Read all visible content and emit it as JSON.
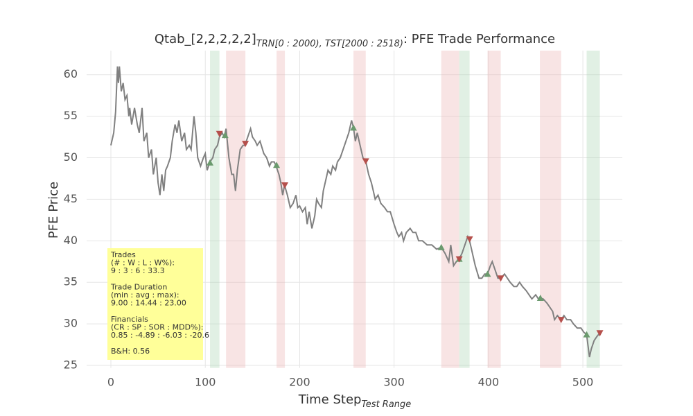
{
  "chart_data": {
    "type": "line",
    "title": "Qtab_[2,2,2,2,2]",
    "title_subscript": "TRN[0 : 2000), TST[2000 : 2518)",
    "title_suffix": ": PFE Trade Performance",
    "xlabel": "Time Step",
    "xlabel_subscript": "Test Range",
    "ylabel": "PFE Price",
    "xlim": [
      -25.7,
      541.8
    ],
    "ylim": [
      24.7,
      62.9
    ],
    "xticks": [
      0,
      100,
      200,
      300,
      400,
      500
    ],
    "yticks": [
      25,
      30,
      35,
      40,
      45,
      50,
      55,
      60
    ],
    "grid": true,
    "line": {
      "color": "#808080",
      "x": [
        0,
        3,
        5,
        7,
        8,
        9,
        11,
        13,
        15,
        17,
        19,
        20,
        22,
        25,
        28,
        30,
        33,
        35,
        38,
        40,
        43,
        45,
        48,
        50,
        52,
        54,
        56,
        58,
        60,
        63,
        65,
        68,
        70,
        72,
        75,
        78,
        80,
        83,
        85,
        88,
        90,
        92,
        95,
        98,
        100,
        102,
        105,
        108,
        110,
        113,
        115,
        118,
        120,
        122,
        125,
        128,
        130,
        132,
        134,
        137,
        140,
        142,
        145,
        148,
        150,
        153,
        155,
        158,
        162,
        165,
        168,
        170,
        173,
        175,
        178,
        180,
        182,
        184,
        187,
        190,
        193,
        196,
        198,
        200,
        203,
        206,
        208,
        210,
        213,
        216,
        218,
        220,
        223,
        225,
        228,
        230,
        233,
        235,
        238,
        240,
        243,
        246,
        249,
        252,
        255,
        257,
        259,
        261,
        264,
        267,
        270,
        273,
        276,
        278,
        280,
        283,
        286,
        290,
        293,
        296,
        300,
        303,
        305,
        308,
        310,
        313,
        317,
        320,
        323,
        326,
        330,
        335,
        340,
        345,
        350,
        354,
        358,
        360,
        363,
        366,
        369,
        372,
        375,
        378,
        380,
        383,
        386,
        390,
        393,
        396,
        399,
        402,
        404,
        407,
        410,
        413,
        417,
        420,
        423,
        427,
        430,
        433,
        436,
        440,
        443,
        446,
        450,
        453,
        455,
        458,
        462,
        465,
        468,
        470,
        473,
        477,
        480,
        483,
        487,
        490,
        494,
        498,
        501,
        504,
        507,
        509,
        512,
        515,
        518
      ],
      "y": [
        51.5,
        53,
        55.5,
        61,
        59,
        61,
        58,
        59,
        57,
        57.5,
        55,
        56,
        54,
        56,
        54,
        53,
        56,
        52,
        53,
        50,
        51,
        48,
        50,
        47,
        45.5,
        48,
        46,
        48.5,
        49,
        50,
        52,
        54,
        53,
        54.5,
        52,
        53,
        51,
        51.5,
        51,
        55,
        53,
        50,
        49,
        50,
        50.5,
        48.5,
        49.5,
        50,
        51,
        51.5,
        52.5,
        53,
        52.5,
        53.5,
        50,
        48,
        48,
        46,
        48.5,
        51,
        51.5,
        51.5,
        52.5,
        53.5,
        52.5,
        52,
        51.5,
        52,
        50.5,
        50,
        49,
        49.5,
        49.5,
        49,
        48,
        47,
        45.5,
        46.7,
        45.5,
        44,
        44.5,
        45.5,
        44,
        44.2,
        43.5,
        44,
        42,
        43.5,
        41.5,
        43,
        45,
        44.5,
        44,
        46,
        47.5,
        48.5,
        48,
        49,
        48.5,
        49.5,
        50,
        51,
        52,
        53,
        54.5,
        53.6,
        52,
        53,
        51.5,
        50,
        49.6,
        48,
        47,
        46,
        45,
        45.5,
        44.5,
        44,
        43.5,
        43.5,
        42,
        41,
        40.5,
        41,
        40,
        41,
        41.5,
        41,
        41,
        40,
        40,
        39.5,
        39.5,
        39,
        39.2,
        38.5,
        37.5,
        39.5,
        37,
        37.5,
        37.8,
        38.5,
        39.5,
        40.5,
        40,
        38.5,
        37,
        35.5,
        35.5,
        36,
        36,
        37,
        37.5,
        36.5,
        35.5,
        35.5,
        36,
        35.5,
        35,
        34.5,
        34.5,
        35,
        34.5,
        34,
        33.5,
        33,
        33.5,
        33,
        33.1,
        33,
        32.5,
        32,
        31.5,
        30.5,
        31,
        30.5,
        31,
        30.5,
        30.5,
        30,
        29.5,
        29.5,
        29,
        28.7,
        26,
        27,
        28,
        28.5,
        28.9
      ]
    },
    "spans": [
      {
        "start": 105,
        "end": 115,
        "color": "#a8d5b1"
      },
      {
        "start": 122,
        "end": 142.5,
        "color": "#eab3b3"
      },
      {
        "start": 175.5,
        "end": 184.3,
        "color": "#eab3b3"
      },
      {
        "start": 257,
        "end": 270,
        "color": "#eab3b3"
      },
      {
        "start": 350,
        "end": 369,
        "color": "#eab3b3"
      },
      {
        "start": 369,
        "end": 380,
        "color": "#a8d5b1"
      },
      {
        "start": 399,
        "end": 413,
        "color": "#eab3b3"
      },
      {
        "start": 454.5,
        "end": 477,
        "color": "#eab3b3"
      },
      {
        "start": 504,
        "end": 518,
        "color": "#a8d5b1"
      }
    ],
    "buys": {
      "color": "#6b9a6e",
      "x": [
        105,
        121,
        175.5,
        257,
        350,
        369,
        399,
        455,
        504
      ],
      "y": [
        49.4,
        52.7,
        49.1,
        53.6,
        39.2,
        37.8,
        36.0,
        33.1,
        28.7
      ]
    },
    "sells": {
      "color": "#b5504c",
      "x": [
        115,
        142.5,
        184.3,
        270,
        369,
        380,
        413,
        477,
        518
      ],
      "y": [
        52.9,
        51.7,
        46.7,
        49.6,
        37.8,
        40.2,
        35.5,
        30.5,
        28.9
      ]
    },
    "stats_box": {
      "color": "#ffff99",
      "groups": [
        [
          "Trades",
          "(# : W : L : W%):",
          "9 : 3 : 6 : 33.3"
        ],
        [
          "Trade Duration",
          "(min : avg : max):",
          "9.00 : 14.44 : 23.00"
        ],
        [
          "Financials",
          "(CR : SP : SOR : MDD%):",
          "0.85 : -4.89 : -6.03 : -20.6"
        ],
        [
          "B&H: 0.56"
        ]
      ]
    }
  }
}
